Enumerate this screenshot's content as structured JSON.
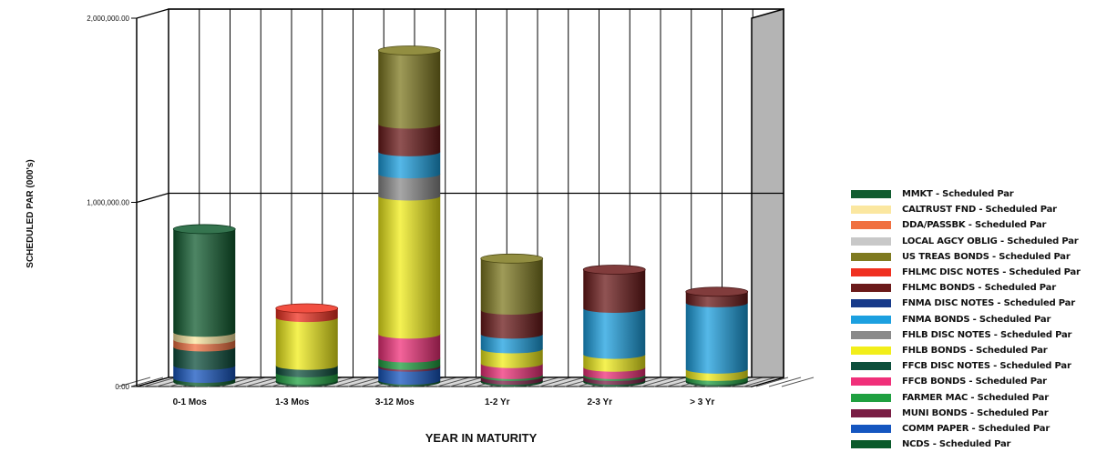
{
  "chart_data": {
    "type": "bar",
    "subtype": "stacked-3d-cylinder",
    "title": "",
    "xlabel": "YEAR IN MATURITY",
    "ylabel": "SCHEDULED PAR (000's)",
    "ylim": [
      0,
      2000000
    ],
    "yticks": [
      "0.00",
      "1,000,000.00",
      "2,000,000.00"
    ],
    "ytick_values": [
      0,
      1000000,
      2000000
    ],
    "grid": true,
    "legend_position": "right",
    "categories": [
      "0-1 Mos",
      "1-3 Mos",
      "3-12 Mos",
      "1-2 Yr",
      "2-3 Yr",
      "> 3 Yr"
    ],
    "series": [
      {
        "name": "NCDS - Scheduled Par",
        "color": "#0a5a2a",
        "values": [
          20000,
          10000,
          10000,
          10000,
          10000,
          10000
        ]
      },
      {
        "name": "COMM PAPER - Scheduled Par",
        "color": "#1556c0",
        "values": [
          70000,
          0,
          70000,
          0,
          0,
          0
        ]
      },
      {
        "name": "MUNI BONDS - Scheduled Par",
        "color": "#7a1e45",
        "values": [
          0,
          0,
          10000,
          20000,
          20000,
          0
        ]
      },
      {
        "name": "FARMER MAC - Scheduled Par",
        "color": "#1fa040",
        "values": [
          0,
          40000,
          40000,
          10000,
          10000,
          20000
        ]
      },
      {
        "name": "FFCB BONDS - Scheduled Par",
        "color": "#f0307a",
        "values": [
          0,
          0,
          130000,
          60000,
          40000,
          0
        ]
      },
      {
        "name": "FFCB DISC NOTES - Scheduled Par",
        "color": "#0d4f3c",
        "values": [
          100000,
          40000,
          0,
          0,
          0,
          0
        ]
      },
      {
        "name": "FHLB BONDS - Scheduled Par",
        "color": "#f2ee1a",
        "values": [
          0,
          260000,
          750000,
          80000,
          70000,
          40000
        ]
      },
      {
        "name": "FHLB DISC NOTES - Scheduled Par",
        "color": "#8a8a8a",
        "values": [
          0,
          0,
          120000,
          0,
          0,
          0
        ]
      },
      {
        "name": "FNMA BONDS - Scheduled Par",
        "color": "#1ca0e0",
        "values": [
          0,
          0,
          120000,
          80000,
          250000,
          360000
        ]
      },
      {
        "name": "FNMA DISC NOTES - Scheduled Par",
        "color": "#173a8a",
        "values": [
          0,
          0,
          0,
          0,
          0,
          0
        ]
      },
      {
        "name": "FHLMC BONDS - Scheduled Par",
        "color": "#6b1a1a",
        "values": [
          0,
          0,
          150000,
          130000,
          210000,
          60000
        ]
      },
      {
        "name": "FHLMC DISC NOTES - Scheduled Par",
        "color": "#f03020",
        "values": [
          0,
          50000,
          0,
          0,
          0,
          0
        ]
      },
      {
        "name": "US TREAS BONDS - Scheduled Par",
        "color": "#7f7a20",
        "values": [
          0,
          0,
          400000,
          280000,
          0,
          0
        ]
      },
      {
        "name": "LOCAL AGCY OBLIG - Scheduled Par",
        "color": "#c8c8c8",
        "values": [
          0,
          0,
          0,
          0,
          0,
          0
        ]
      },
      {
        "name": "DDA/PASSBK - Scheduled Par",
        "color": "#f07040",
        "values": [
          40000,
          0,
          0,
          0,
          0,
          0
        ]
      },
      {
        "name": "CALTRUST FND - Scheduled Par",
        "color": "#fbe7a0",
        "values": [
          40000,
          0,
          0,
          0,
          0,
          0
        ]
      },
      {
        "name": "MMKT - Scheduled Par",
        "color": "#115c30",
        "values": [
          560000,
          0,
          0,
          0,
          0,
          0
        ]
      }
    ]
  }
}
